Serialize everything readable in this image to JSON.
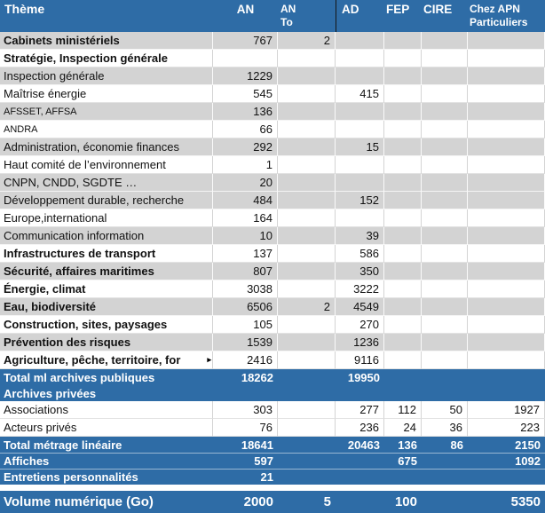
{
  "colors": {
    "header_blue": "#2e6ca6",
    "total_row_blue": "#2e6ca6",
    "row_gray": "#d3d3d3",
    "row_white": "#ffffff",
    "gridline_gray": "#d4d4d4",
    "header_divider_black": "#151515",
    "text_white": "#ffffff",
    "text_black": "#111111"
  },
  "icons": {
    "truncation_arrow": "▸"
  },
  "table": {
    "columns": [
      {
        "key": "theme",
        "label": "Thème"
      },
      {
        "key": "an",
        "label": "AN"
      },
      {
        "key": "an_to",
        "label": "AN\nTo"
      },
      {
        "key": "ad",
        "label": "AD"
      },
      {
        "key": "fep",
        "label": "FEP"
      },
      {
        "key": "cire",
        "label": "CIRE"
      },
      {
        "key": "chez",
        "label": "Chez APN\nParticuliers"
      }
    ],
    "rows": [
      {
        "label": "Cabinets ministériels",
        "shade": "gray",
        "bold": true,
        "values": {
          "an": "767",
          "an_to": "2"
        }
      },
      {
        "label": "Stratégie, Inspection générale",
        "shade": "white",
        "bold": true,
        "values": {}
      },
      {
        "label": "Inspection générale",
        "shade": "gray",
        "bold": false,
        "values": {
          "an": "1229"
        }
      },
      {
        "label": "Maîtrise énergie",
        "shade": "white",
        "bold": false,
        "values": {
          "an": "545",
          "ad": "415"
        }
      },
      {
        "label": "AFSSET, AFFSA",
        "shade": "gray",
        "bold": false,
        "variant": "small-label",
        "values": {
          "an": "136"
        }
      },
      {
        "label": "ANDRA",
        "shade": "white",
        "bold": false,
        "variant": "small-label",
        "values": {
          "an": "66"
        }
      },
      {
        "label": "Administration, économie finances",
        "shade": "gray",
        "bold": false,
        "values": {
          "an": "292",
          "ad": "15"
        }
      },
      {
        "label": "Haut comité de l’environnement",
        "shade": "white",
        "bold": false,
        "values": {
          "an": "1"
        }
      },
      {
        "label": "CNPN, CNDD, SGDTE …",
        "shade": "gray",
        "bold": false,
        "values": {
          "an": "20"
        }
      },
      {
        "label": "Développement durable, recherche",
        "shade": "gray",
        "bold": false,
        "values": {
          "an": "484",
          "ad": "152"
        }
      },
      {
        "label": "Europe,international",
        "shade": "white",
        "bold": false,
        "values": {
          "an": "164"
        }
      },
      {
        "label": "Communication information",
        "shade": "gray",
        "bold": false,
        "values": {
          "an": "10",
          "ad": "39"
        }
      },
      {
        "label": "Infrastructures de transport",
        "shade": "white",
        "bold": true,
        "values": {
          "an": "137",
          "ad": "586"
        }
      },
      {
        "label": "Sécurité, affaires maritimes",
        "shade": "gray",
        "bold": true,
        "values": {
          "an": "807",
          "ad": "350"
        }
      },
      {
        "label": "Énergie, climat",
        "shade": "white",
        "bold": true,
        "values": {
          "an": "3038",
          "ad": "3222"
        }
      },
      {
        "label": "Eau, biodiversité",
        "shade": "gray",
        "bold": true,
        "values": {
          "an": "6506",
          "an_to": "2",
          "ad": "4549"
        }
      },
      {
        "label": "Construction, sites, paysages",
        "shade": "white",
        "bold": true,
        "values": {
          "an": "105",
          "ad": "270"
        }
      },
      {
        "label": "Prévention des risques",
        "shade": "gray",
        "bold": true,
        "values": {
          "an": "1539",
          "ad": "1236"
        }
      },
      {
        "label": "Agriculture, pêche, territoire, for",
        "shade": "white",
        "bold": true,
        "truncated": true,
        "values": {
          "an": "2416",
          "ad": "9116"
        }
      },
      {
        "label": "Total ml archives publiques",
        "shade": "blue",
        "bold": true,
        "values": {
          "an": "18262",
          "ad": "19950"
        }
      },
      {
        "label": "Archives privées",
        "shade": "blue",
        "bold": true,
        "values": {}
      },
      {
        "label": "Associations",
        "shade": "white",
        "bold": false,
        "values": {
          "an": "303",
          "ad": "277",
          "fep": "112",
          "cire": "50",
          "chez": "1927"
        }
      },
      {
        "label": "Acteurs privés",
        "shade": "white",
        "bold": false,
        "values": {
          "an": "76",
          "ad": "236",
          "fep": "24",
          "cire": "36",
          "chez": "223"
        }
      },
      {
        "label": "Total métrage linéaire",
        "shade": "blue",
        "bold": true,
        "values": {
          "an": "18641",
          "ad": "20463",
          "fep": "136",
          "cire": "86",
          "chez": "2150"
        }
      },
      {
        "label": "Affiches",
        "shade": "blue",
        "bold": true,
        "divider_above": true,
        "values": {
          "an": "597",
          "fep": "675",
          "chez": "1092"
        }
      },
      {
        "label": "Entretiens personnalités",
        "shade": "blue",
        "bold": true,
        "divider_above": true,
        "values": {
          "an": "21"
        }
      },
      {
        "variant": "gap"
      },
      {
        "label": "Volume numérique (Go)",
        "shade": "blue",
        "bold": true,
        "variant": "tall",
        "values": {
          "an": "2000",
          "an_to": "5",
          "fep": "100",
          "chez": "5350"
        }
      }
    ]
  }
}
